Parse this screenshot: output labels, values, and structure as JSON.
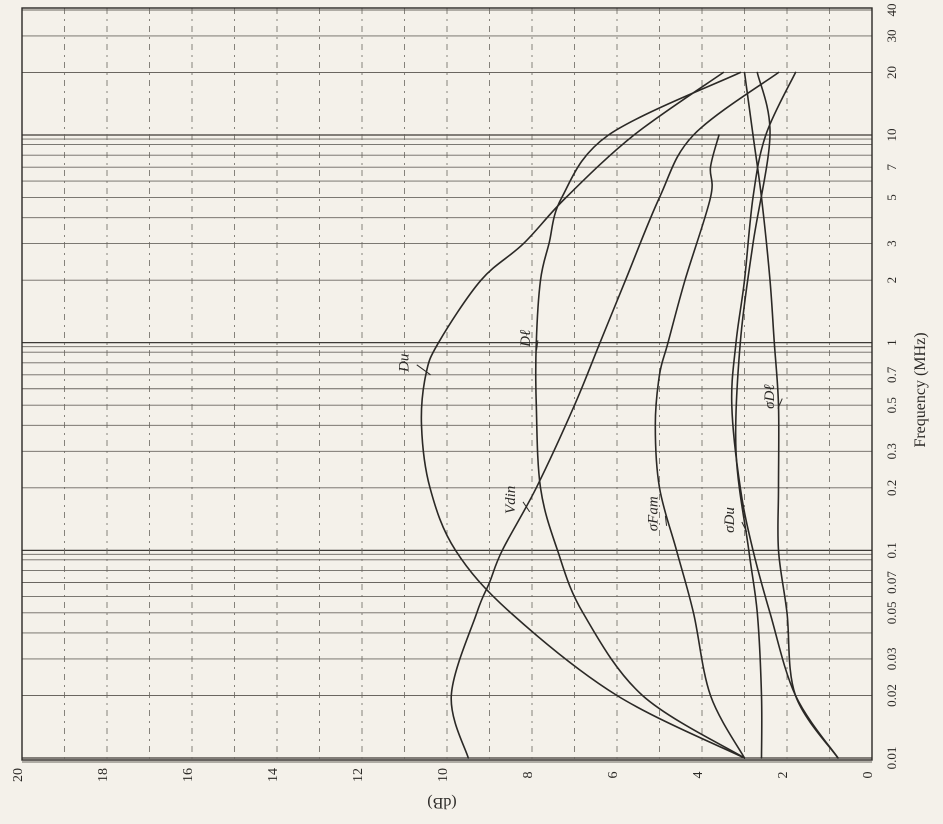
{
  "chart_data": {
    "type": "line",
    "orientation": "rotated-90",
    "title": "",
    "xlabel": "Frequency (MHz)",
    "ylabel": "(dB)",
    "x_scale": "log",
    "xlim": [
      0.01,
      40
    ],
    "ylim": [
      0,
      20
    ],
    "x_ticks": [
      {
        "value": 0.01,
        "label": "0.01"
      },
      {
        "value": 0.02,
        "label": "0.02"
      },
      {
        "value": 0.03,
        "label": "0.03"
      },
      {
        "value": 0.05,
        "label": "0.05"
      },
      {
        "value": 0.07,
        "label": "0.07"
      },
      {
        "value": 0.1,
        "label": "0.1"
      },
      {
        "value": 0.2,
        "label": "0.2"
      },
      {
        "value": 0.3,
        "label": "0.3"
      },
      {
        "value": 0.5,
        "label": "0.5"
      },
      {
        "value": 0.7,
        "label": "0.7"
      },
      {
        "value": 1,
        "label": "1"
      },
      {
        "value": 2,
        "label": "2"
      },
      {
        "value": 3,
        "label": "3"
      },
      {
        "value": 5,
        "label": "5"
      },
      {
        "value": 7,
        "label": "7"
      },
      {
        "value": 10,
        "label": "10"
      },
      {
        "value": 20,
        "label": "20"
      },
      {
        "value": 30,
        "label": "30"
      },
      {
        "value": 40,
        "label": "40"
      }
    ],
    "y_ticks": [
      {
        "value": 20,
        "label": "20"
      },
      {
        "value": 18,
        "label": "18"
      },
      {
        "value": 16,
        "label": "16"
      },
      {
        "value": 14,
        "label": "14"
      },
      {
        "value": 12,
        "label": "12"
      },
      {
        "value": 10,
        "label": "10"
      },
      {
        "value": 8,
        "label": "8"
      },
      {
        "value": 6,
        "label": "6"
      },
      {
        "value": 4,
        "label": "4"
      },
      {
        "value": 2,
        "label": "2"
      },
      {
        "value": 0,
        "label": "0"
      }
    ],
    "grid": true,
    "series": [
      {
        "name": "Du",
        "x": [
          0.01,
          0.02,
          0.05,
          0.1,
          0.2,
          0.4,
          0.7,
          1,
          2,
          3,
          5,
          10,
          20
        ],
        "y": [
          3.0,
          6.0,
          8.5,
          9.8,
          10.4,
          10.6,
          10.5,
          10.2,
          9.2,
          8.2,
          7.2,
          5.6,
          3.5
        ]
      },
      {
        "name": "Dℓ",
        "x": [
          0.01,
          0.02,
          0.05,
          0.1,
          0.2,
          0.5,
          1,
          2,
          3,
          5,
          10,
          20
        ],
        "y": [
          3.0,
          5.4,
          6.8,
          7.4,
          7.8,
          7.9,
          7.9,
          7.8,
          7.6,
          7.3,
          6.2,
          3.1
        ]
      },
      {
        "name": "Vdin",
        "x": [
          0.01,
          0.02,
          0.05,
          0.07,
          0.1,
          0.2,
          0.5,
          1,
          2,
          5,
          10,
          20
        ],
        "y": [
          9.5,
          9.9,
          9.3,
          9.0,
          8.7,
          7.9,
          7.0,
          6.4,
          5.8,
          5.0,
          4.2,
          2.2
        ]
      },
      {
        "name": "σFam",
        "x": [
          0.01,
          0.02,
          0.05,
          0.1,
          0.2,
          0.4,
          0.7,
          1,
          2,
          5,
          7,
          10
        ],
        "y": [
          3.0,
          3.8,
          4.2,
          4.6,
          5.0,
          5.1,
          5.0,
          4.8,
          4.4,
          3.8,
          3.8,
          3.6
        ]
      },
      {
        "name": "σDu",
        "x": [
          0.01,
          0.02,
          0.05,
          0.1,
          0.2,
          0.5,
          1,
          2,
          5,
          10,
          20
        ],
        "y": [
          0.8,
          1.8,
          2.4,
          2.8,
          3.1,
          3.3,
          3.2,
          3.0,
          2.8,
          2.5,
          1.8
        ]
      },
      {
        "name": "σDℓ",
        "x": [
          0.01,
          0.02,
          0.05,
          0.1,
          0.2,
          0.5,
          1,
          2,
          5,
          10,
          20
        ],
        "y": [
          0.8,
          1.8,
          2.0,
          2.2,
          2.2,
          2.2,
          2.3,
          2.4,
          2.6,
          2.8,
          3.0
        ]
      },
      {
        "name": "",
        "x": [
          0.01,
          0.02,
          0.05,
          0.1,
          0.3,
          1,
          3,
          10,
          20
        ],
        "y": [
          2.6,
          2.6,
          2.7,
          2.9,
          3.2,
          3.1,
          2.8,
          2.4,
          2.7
        ]
      }
    ],
    "annotations": [
      {
        "label": "Du",
        "x": 0.8,
        "y": 10.9
      },
      {
        "label": "Dℓ",
        "x": 1.05,
        "y": 8.05
      },
      {
        "label": "Vdin",
        "x": 0.175,
        "y": 8.4
      },
      {
        "label": "σFam",
        "x": 0.15,
        "y": 5.05
      },
      {
        "label": "σDu",
        "x": 0.14,
        "y": 3.25
      },
      {
        "label": "σDℓ",
        "x": 0.55,
        "y": 2.3
      }
    ]
  }
}
